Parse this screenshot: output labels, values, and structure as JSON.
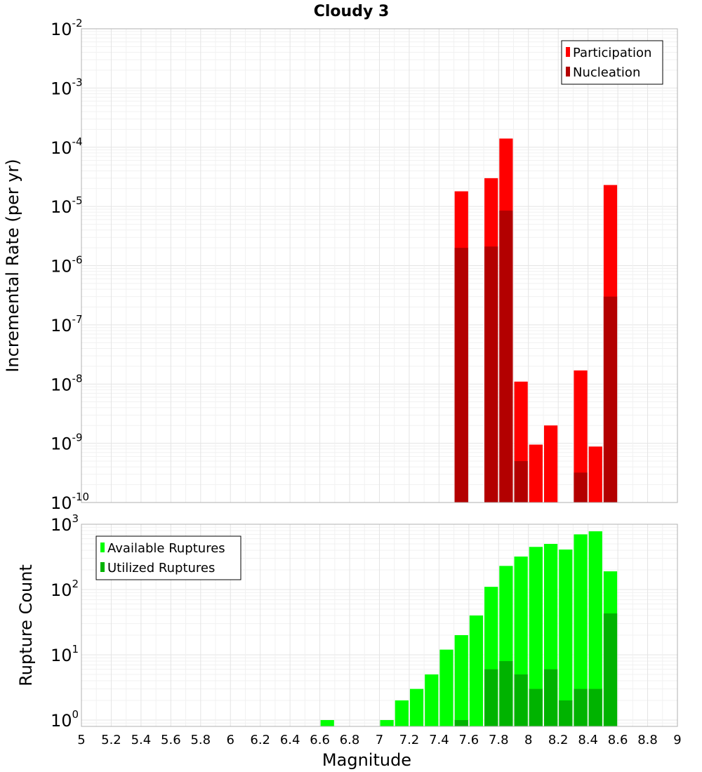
{
  "chart_data": [
    {
      "type": "bar",
      "title": "Cloudy 3",
      "ylabel": "Incremental Rate (per yr)",
      "xlabel": "",
      "yscale": "log",
      "ylim": [
        1e-10,
        0.01
      ],
      "xlim": [
        5,
        9
      ],
      "bar_width": 0.1,
      "y_tick_exponents": [
        "-10",
        "-9",
        "-8",
        "-7",
        "-6",
        "-5",
        "-4",
        "-3",
        "-2"
      ],
      "legend": {
        "position": "top-right",
        "entries": [
          "Participation",
          "Nucleation"
        ]
      },
      "colors": {
        "Participation": "#ff0000",
        "Nucleation": "#b30000"
      },
      "series": [
        {
          "name": "Participation",
          "x": [
            7.55,
            7.75,
            7.85,
            7.95,
            8.05,
            8.15,
            8.35,
            8.45,
            8.55
          ],
          "values": [
            1.8e-05,
            3e-05,
            0.00014,
            1.1e-08,
            9.5e-10,
            2e-09,
            1.7e-08,
            8.8e-10,
            2.3e-05
          ]
        },
        {
          "name": "Nucleation",
          "x": [
            7.55,
            7.75,
            7.85,
            7.95,
            8.35,
            8.55
          ],
          "values": [
            2e-06,
            2.1e-06,
            8.5e-06,
            5e-10,
            3.2e-10,
            3e-07
          ]
        }
      ]
    },
    {
      "type": "bar",
      "title": "",
      "ylabel": "Rupture Count",
      "xlabel": "Magnitude",
      "yscale": "log",
      "ylim": [
        0.8,
        1000
      ],
      "xlim": [
        5,
        9
      ],
      "bar_width": 0.1,
      "x_ticks": [
        "5",
        "5.2",
        "5.4",
        "5.6",
        "5.8",
        "6",
        "6.2",
        "6.4",
        "6.6",
        "6.8",
        "7",
        "7.2",
        "7.4",
        "7.6",
        "7.8",
        "8",
        "8.2",
        "8.4",
        "8.6",
        "8.8",
        "9"
      ],
      "y_tick_exponents": [
        "0",
        "1",
        "2",
        "3"
      ],
      "legend": {
        "position": "top-left",
        "entries": [
          "Available Ruptures",
          "Utilized Ruptures"
        ]
      },
      "colors": {
        "Available Ruptures": "#00ff00",
        "Utilized Ruptures": "#00b300"
      },
      "series": [
        {
          "name": "Available Ruptures",
          "x": [
            6.65,
            7.05,
            7.15,
            7.25,
            7.35,
            7.45,
            7.55,
            7.65,
            7.75,
            7.85,
            7.95,
            8.05,
            8.15,
            8.25,
            8.35,
            8.45,
            8.55
          ],
          "values": [
            1,
            1,
            2,
            3,
            5,
            12,
            20,
            40,
            110,
            230,
            320,
            450,
            500,
            410,
            700,
            780,
            190
          ]
        },
        {
          "name": "Utilized Ruptures",
          "x": [
            7.55,
            7.75,
            7.85,
            7.95,
            8.05,
            8.15,
            8.25,
            8.35,
            8.45,
            8.55
          ],
          "values": [
            1,
            6,
            8,
            5,
            3,
            6,
            2,
            3,
            3,
            43
          ]
        }
      ]
    }
  ]
}
